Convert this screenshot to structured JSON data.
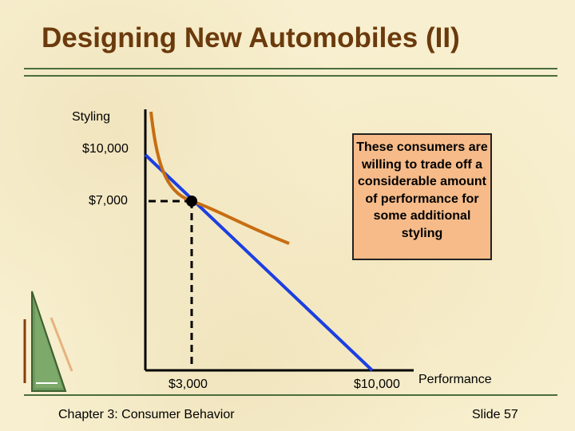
{
  "slide": {
    "title": "Designing New Automobiles (II)",
    "footer_left": "Chapter 3: Consumer Behavior",
    "footer_right": "Slide 57"
  },
  "diagram": {
    "y_axis_label": "Styling",
    "x_axis_label": "Performance",
    "y_tick_high": "$10,000",
    "y_tick_mid": "$7,000",
    "x_tick_mid": "$3,000",
    "x_tick_high": "$10,000",
    "note": "These consumers are willing to trade off a considerable amount of performance for some additional styling"
  },
  "colors": {
    "title": "#6b3a0c",
    "budget_line": "#1c3fe0",
    "indifference_curve": "#c76d12",
    "note_fill": "#f6bb89",
    "rule": "#4a6e3b"
  }
}
